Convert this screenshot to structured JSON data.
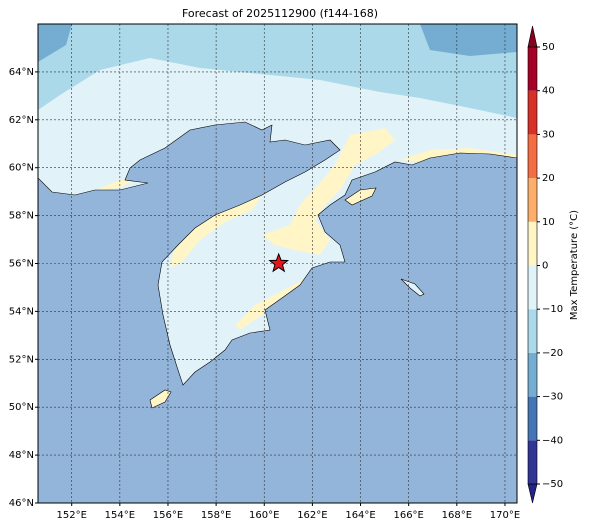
{
  "title": "Forecast of 2025112900 (f144-168)",
  "map": {
    "xlim": [
      150.6,
      170.5
    ],
    "ylim": [
      46,
      66
    ],
    "xticks": [
      {
        "value": 152,
        "label": "152°E"
      },
      {
        "value": 154,
        "label": "154°E"
      },
      {
        "value": 156,
        "label": "156°E"
      },
      {
        "value": 158,
        "label": "158°E"
      },
      {
        "value": 160,
        "label": "160°E"
      },
      {
        "value": 162,
        "label": "162°E"
      },
      {
        "value": 164,
        "label": "164°E"
      },
      {
        "value": 166,
        "label": "166°E"
      },
      {
        "value": 168,
        "label": "168°E"
      },
      {
        "value": 170,
        "label": "170°E"
      }
    ],
    "yticks": [
      {
        "value": 46,
        "label": "46°N"
      },
      {
        "value": 48,
        "label": "48°N"
      },
      {
        "value": 50,
        "label": "50°N"
      },
      {
        "value": 52,
        "label": "52°N"
      },
      {
        "value": 54,
        "label": "54°N"
      },
      {
        "value": 56,
        "label": "56°N"
      },
      {
        "value": 58,
        "label": "58°N"
      },
      {
        "value": 60,
        "label": "60°N"
      },
      {
        "value": 62,
        "label": "62°N"
      },
      {
        "value": 64,
        "label": "64°N"
      }
    ],
    "grid": true,
    "marker": {
      "lon": 160.6,
      "lat": 56.0,
      "color": "#e8141c"
    }
  },
  "colorbar": {
    "label": "Max Temperature (°C)",
    "ticks": [
      {
        "value": -50,
        "label": "−50"
      },
      {
        "value": -40,
        "label": "−40"
      },
      {
        "value": -30,
        "label": "−30"
      },
      {
        "value": -20,
        "label": "−20"
      },
      {
        "value": -10,
        "label": "−10"
      },
      0,
      10,
      20,
      30,
      40,
      50
    ],
    "colors": [
      "#313695",
      "#4575b4",
      "#74add1",
      "#abd9e9",
      "#e0f3f8",
      "#fff5c6",
      "#fdae6b",
      "#f46d43",
      "#d73027",
      "#a50026"
    ],
    "under": "#23238a",
    "over": "#8a0020"
  }
}
